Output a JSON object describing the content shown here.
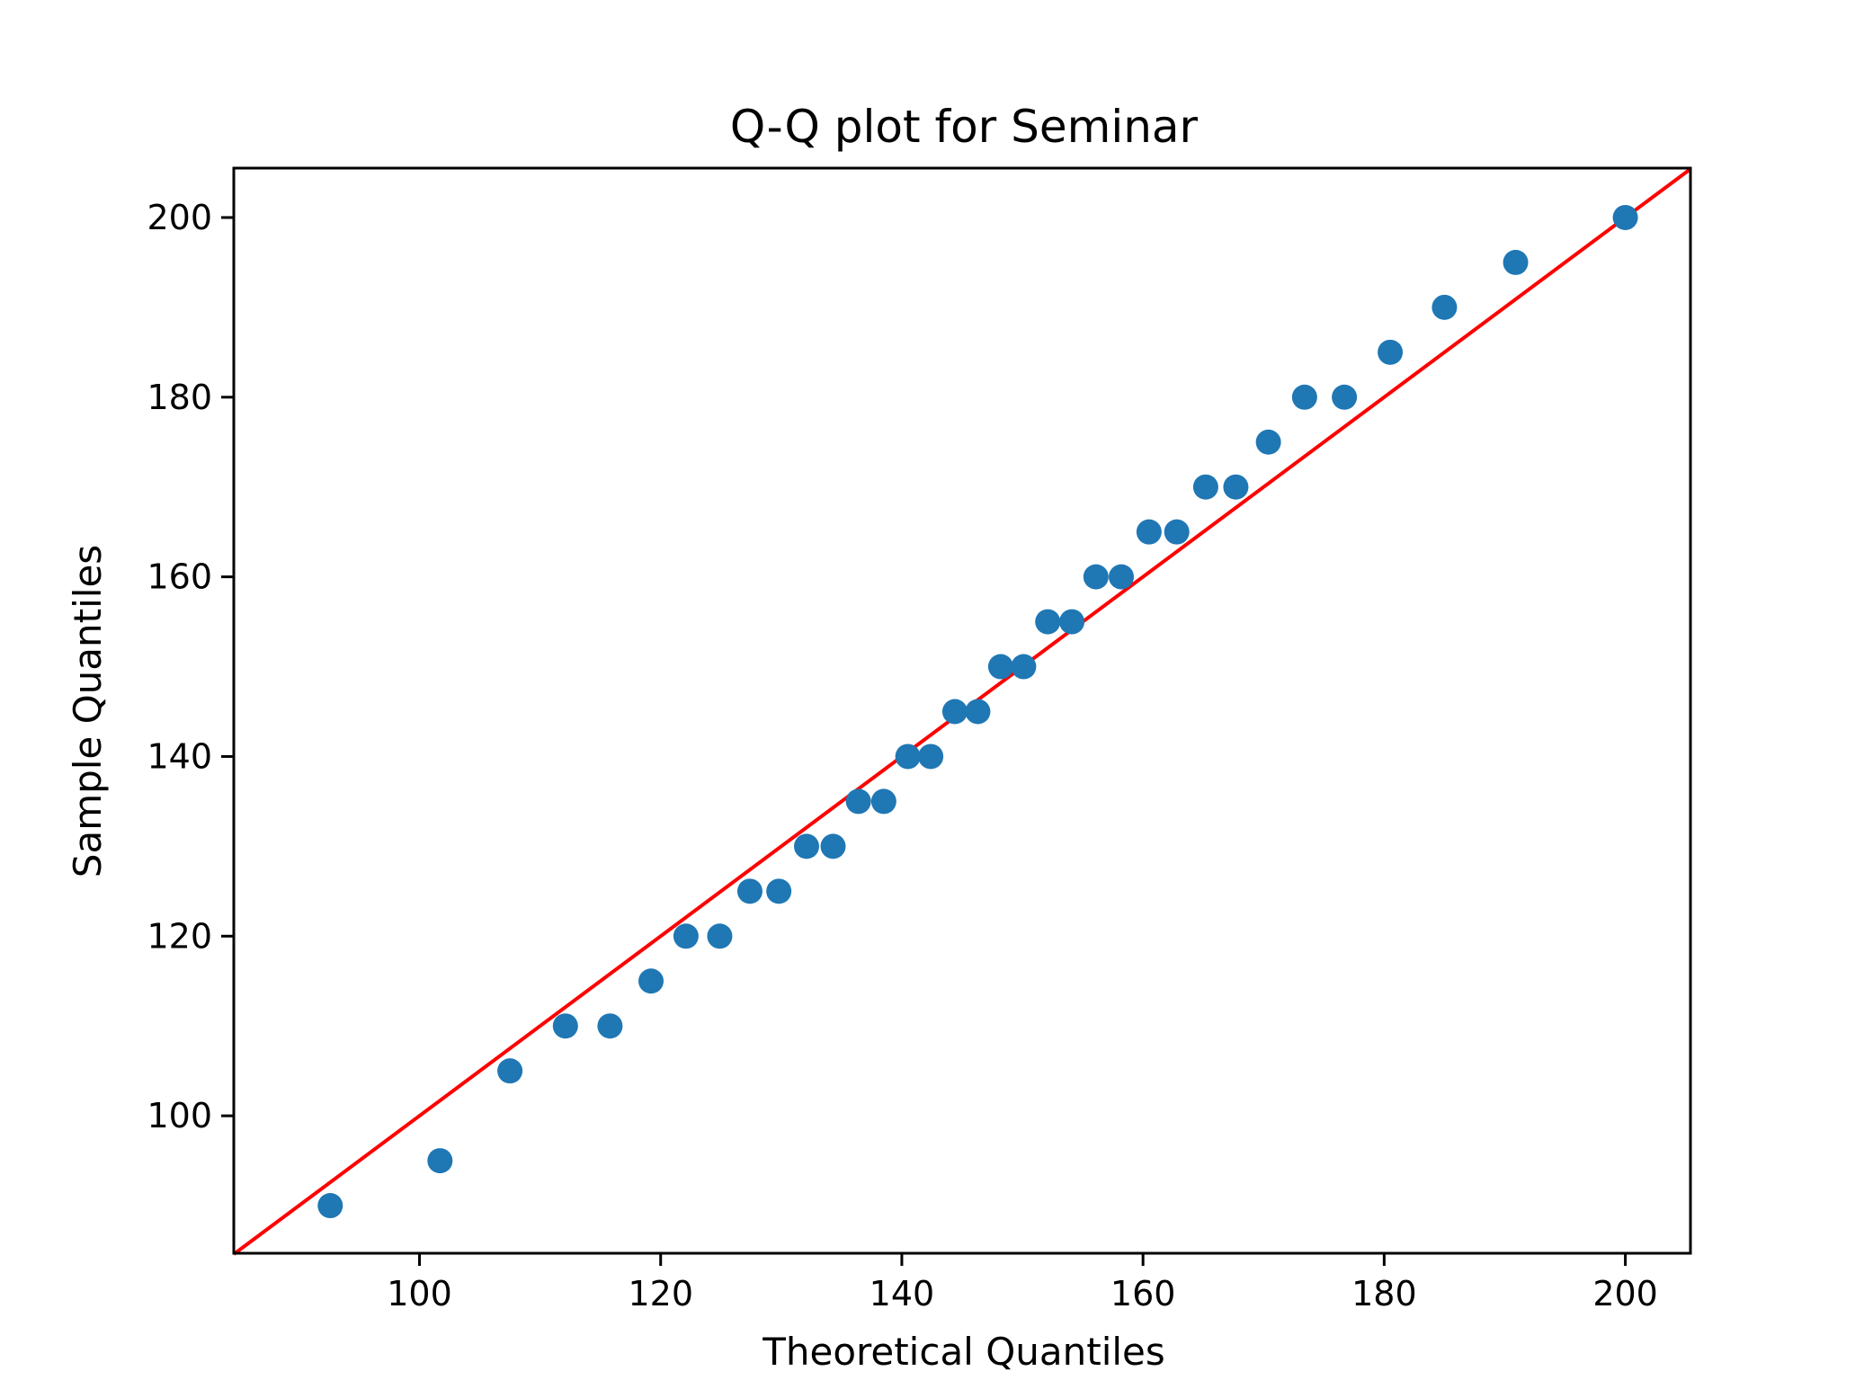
{
  "chart_data": {
    "type": "scatter",
    "title": "Q-Q plot for Seminar",
    "xlabel": "Theoretical Quantiles",
    "ylabel": "Sample Quantiles",
    "xlim": [
      84.6,
      205.4
    ],
    "ylim": [
      84.7,
      205.5
    ],
    "xticks": [
      "100",
      "120",
      "140",
      "160",
      "180",
      "200"
    ],
    "yticks": [
      "100",
      "120",
      "140",
      "160",
      "180",
      "200"
    ],
    "grid": false,
    "legend": "none",
    "points_color": "#1f77b4",
    "line_color": "#ff0000",
    "reference_line": {
      "from": [
        84.6,
        84.6
      ],
      "to": [
        205.4,
        205.4
      ]
    },
    "points": [
      [
        92.6,
        90
      ],
      [
        101.7,
        95
      ],
      [
        107.5,
        105
      ],
      [
        112.1,
        110
      ],
      [
        115.8,
        110
      ],
      [
        119.2,
        115
      ],
      [
        122.1,
        120
      ],
      [
        124.9,
        120
      ],
      [
        127.4,
        125
      ],
      [
        129.8,
        125
      ],
      [
        132.1,
        130
      ],
      [
        134.3,
        130
      ],
      [
        136.4,
        135
      ],
      [
        138.5,
        135
      ],
      [
        140.5,
        140
      ],
      [
        142.4,
        140
      ],
      [
        144.4,
        145
      ],
      [
        146.3,
        145
      ],
      [
        148.2,
        150
      ],
      [
        150.1,
        150
      ],
      [
        152.1,
        155
      ],
      [
        154.1,
        155
      ],
      [
        156.1,
        160
      ],
      [
        158.2,
        160
      ],
      [
        160.5,
        165
      ],
      [
        162.8,
        165
      ],
      [
        165.2,
        170
      ],
      [
        167.7,
        170
      ],
      [
        170.4,
        175
      ],
      [
        173.4,
        180
      ],
      [
        176.7,
        180
      ],
      [
        180.5,
        185
      ],
      [
        185.0,
        190
      ],
      [
        190.9,
        195
      ],
      [
        200.0,
        200
      ]
    ]
  }
}
